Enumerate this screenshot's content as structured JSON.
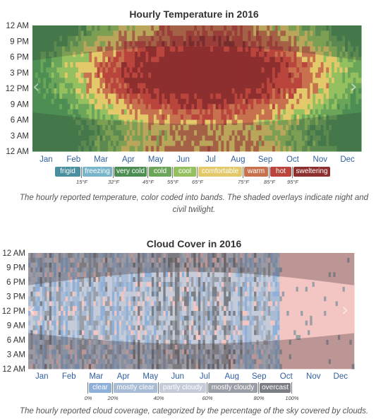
{
  "chart_data": [
    {
      "type": "heatmap",
      "title": "Hourly Temperature in 2016",
      "x_categories": [
        "Jan",
        "Feb",
        "Mar",
        "Apr",
        "May",
        "Jun",
        "Jul",
        "Aug",
        "Sep",
        "Oct",
        "Nov",
        "Dec"
      ],
      "y_ticks": [
        "12 AM",
        "9 PM",
        "6 PM",
        "3 PM",
        "12 PM",
        "9 AM",
        "6 AM",
        "3 AM",
        "12 AM"
      ],
      "bands": [
        {
          "name": "frigid",
          "color": "#4a8fa0"
        },
        {
          "name": "freezing",
          "color": "#78b5cb"
        },
        {
          "name": "very cold",
          "color": "#4c8e53"
        },
        {
          "name": "cold",
          "color": "#6aa55a"
        },
        {
          "name": "cool",
          "color": "#95c05f"
        },
        {
          "name": "comfortable",
          "color": "#e3c96a"
        },
        {
          "name": "warm",
          "color": "#c7714e"
        },
        {
          "name": "hot",
          "color": "#b9453d"
        },
        {
          "name": "sweltering",
          "color": "#8e2f2f"
        }
      ],
      "thresholds": [
        "15°F",
        "32°F",
        "45°F",
        "55°F",
        "65°F",
        "75°F",
        "85°F",
        "95°F"
      ],
      "caption": "The hourly reported temperature, color coded into bands. The shaded overlays indicate night and civil twilight."
    },
    {
      "type": "heatmap",
      "title": "Cloud Cover in 2016",
      "x_categories": [
        "Jan",
        "Feb",
        "Mar",
        "Apr",
        "May",
        "Jun",
        "Jul",
        "Aug",
        "Sep",
        "Oct",
        "Nov",
        "Dec"
      ],
      "y_ticks": [
        "12 AM",
        "9 PM",
        "6 PM",
        "3 PM",
        "12 PM",
        "9 AM",
        "6 AM",
        "3 AM",
        "12 AM"
      ],
      "bands": [
        {
          "name": "clear",
          "color": "#8fb0d8"
        },
        {
          "name": "mostly clear",
          "color": "#a9bcd6"
        },
        {
          "name": "partly cloudy",
          "color": "#c5cbd8"
        },
        {
          "name": "mostly cloudy",
          "color": "#9a9ea6"
        },
        {
          "name": "overcast",
          "color": "#7b7e84"
        }
      ],
      "thresholds": [
        "0%",
        "20%",
        "40%",
        "60%",
        "80%",
        "100%"
      ],
      "caption": "The hourly reported cloud coverage, categorized by the percentage of the sky covered by clouds."
    }
  ]
}
